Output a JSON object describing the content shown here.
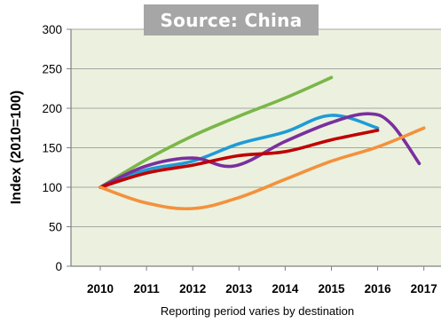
{
  "chart_data": {
    "type": "line",
    "title": "Source: China",
    "xlabel": "Reporting period varies by destination",
    "ylabel": "Index (2010=100)",
    "x": [
      2010,
      2011,
      2012,
      2013,
      2014,
      2015,
      2016,
      2017
    ],
    "xlim": [
      2010,
      2017
    ],
    "ylim": [
      0,
      300
    ],
    "yticks": [
      0,
      50,
      100,
      150,
      200,
      250,
      300
    ],
    "grid": true,
    "legend": "none",
    "series": [
      {
        "color": "#7ab648",
        "x": [
          2010,
          2011,
          2012,
          2013,
          2014,
          2015
        ],
        "values": [
          100,
          135,
          165,
          190,
          213,
          239
        ]
      },
      {
        "color": "#1f9bd7",
        "x": [
          2010,
          2011,
          2012,
          2013,
          2014,
          2015,
          2016
        ],
        "values": [
          100,
          122,
          133,
          155,
          170,
          191,
          175
        ]
      },
      {
        "color": "#7b2f9e",
        "x": [
          2010,
          2011,
          2012,
          2012.9,
          2014,
          2015,
          2015.8,
          2016.3,
          2016.9
        ],
        "values": [
          100,
          127,
          137,
          127,
          158,
          182,
          193,
          180,
          130
        ]
      },
      {
        "color": "#c00000",
        "x": [
          2010,
          2011,
          2012,
          2013,
          2014,
          2015,
          2016
        ],
        "values": [
          100,
          118,
          128,
          140,
          145,
          160,
          172
        ]
      },
      {
        "color": "#f4913c",
        "x": [
          2010,
          2011,
          2012,
          2013,
          2014,
          2015,
          2016,
          2017
        ],
        "values": [
          100,
          80,
          73,
          87,
          110,
          133,
          151,
          175
        ]
      }
    ]
  }
}
